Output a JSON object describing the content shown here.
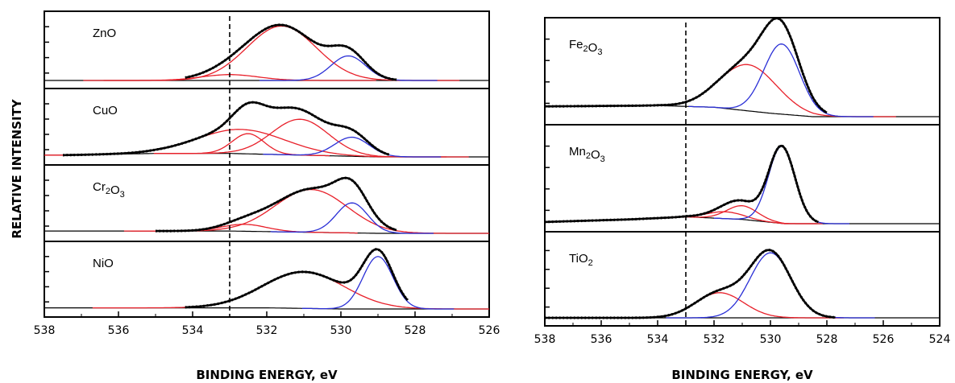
{
  "colors": {
    "data": "#000000",
    "red_component": "#e8202a",
    "blue_component": "#2a2fd6",
    "baseline": "#000000"
  },
  "chart_data": [
    {
      "type": "line",
      "subtype": "stacked_xps_spectra",
      "xlabel": "BINDING ENERGY, eV",
      "ylabel": "RELATIVE INTENSITY",
      "xlim": [
        538,
        526
      ],
      "x_reversed": true,
      "x_ticks": [
        "538",
        "536",
        "534",
        "532",
        "530",
        "528",
        "526"
      ],
      "reference_line": 533,
      "panels": [
        {
          "label": {
            "main": "ZnO",
            "parts": [
              {
                "t": "ZnO",
                "sub": ""
              }
            ]
          },
          "ylim": [
            0,
            1.1
          ],
          "background": [
            [
              534.2,
              0.0
            ],
            [
              526,
              0.0
            ]
          ],
          "envelope": {
            "start": 534.2,
            "end": 528.5,
            "level": 0.0
          },
          "peaks": [
            {
              "color": "red",
              "center": 531.6,
              "height": 0.93,
              "fwhm": 2.2
            },
            {
              "color": "red",
              "center": 533.0,
              "height": 0.1,
              "fwhm": 1.8
            },
            {
              "color": "blue",
              "center": 529.8,
              "height": 0.42,
              "fwhm": 1.1
            }
          ]
        },
        {
          "label": {
            "main": "CuO",
            "parts": [
              {
                "t": "CuO",
                "sub": ""
              }
            ]
          },
          "ylim": [
            0,
            1.1
          ],
          "background": [
            [
              537.5,
              0.03
            ],
            [
              535,
              0.06
            ],
            [
              533,
              0.06
            ],
            [
              531,
              0.03
            ],
            [
              529,
              0.0
            ],
            [
              526,
              0.0
            ]
          ],
          "envelope": {
            "start": 537.5,
            "end": 528.7,
            "level": 0.0
          },
          "peaks": [
            {
              "color": "red",
              "center": 532.7,
              "height": 0.42,
              "fwhm": 2.8
            },
            {
              "color": "red",
              "center": 532.5,
              "height": 0.35,
              "fwhm": 1.0
            },
            {
              "color": "red",
              "center": 531.1,
              "height": 0.62,
              "fwhm": 1.8
            },
            {
              "color": "blue",
              "center": 529.7,
              "height": 0.33,
              "fwhm": 1.1
            }
          ]
        },
        {
          "label": {
            "main": "Cr2O3",
            "parts": [
              {
                "t": "Cr",
                "sub": "2"
              },
              {
                "t": "O",
                "sub": "3"
              }
            ]
          },
          "ylim": [
            0,
            1.1
          ],
          "background": [
            [
              535.0,
              0.04
            ],
            [
              533,
              0.04
            ],
            [
              531,
              0.02
            ],
            [
              529,
              0.0
            ],
            [
              526,
              0.0
            ]
          ],
          "envelope": {
            "start": 535.0,
            "end": 528.5,
            "level": 0.0
          },
          "peaks": [
            {
              "color": "red",
              "center": 530.8,
              "height": 0.74,
              "fwhm": 2.3
            },
            {
              "color": "red",
              "center": 532.6,
              "height": 0.12,
              "fwhm": 1.4
            },
            {
              "color": "blue",
              "center": 529.7,
              "height": 0.52,
              "fwhm": 1.0
            }
          ]
        },
        {
          "label": {
            "main": "NiO",
            "parts": [
              {
                "t": "NiO",
                "sub": ""
              }
            ]
          },
          "ylim": [
            0,
            1.1
          ],
          "background": [
            [
              534.2,
              0.02
            ],
            [
              532,
              0.02
            ],
            [
              530,
              0.0
            ],
            [
              526,
              0.0
            ]
          ],
          "envelope": {
            "start": 534.2,
            "end": 528.2,
            "level": 0.0
          },
          "peaks": [
            {
              "color": "red",
              "center": 531.0,
              "height": 0.64,
              "fwhm": 2.6
            },
            {
              "color": "blue",
              "center": 529.0,
              "height": 0.92,
              "fwhm": 0.95
            }
          ]
        }
      ]
    },
    {
      "type": "line",
      "subtype": "stacked_xps_spectra",
      "xlabel": "BINDING ENERGY, eV",
      "ylabel": "",
      "xlim": [
        538,
        524
      ],
      "x_reversed": true,
      "x_ticks": [
        "538",
        "536",
        "534",
        "532",
        "530",
        "528",
        "526",
        "524"
      ],
      "reference_line": 533,
      "panels": [
        {
          "label": {
            "main": "Fe2O3",
            "parts": [
              {
                "t": "Fe",
                "sub": "2"
              },
              {
                "t": "O",
                "sub": "3"
              }
            ]
          },
          "ylim": [
            0,
            1.1
          ],
          "background": [
            [
              538,
              0.12
            ],
            [
              534,
              0.13
            ],
            [
              532,
              0.11
            ],
            [
              530,
              0.04
            ],
            [
              528.5,
              0.0
            ],
            [
              524,
              0.0
            ]
          ],
          "envelope": {
            "start": 538,
            "end": 528.0,
            "level": 0.0
          },
          "peaks": [
            {
              "color": "red",
              "center": 530.8,
              "height": 0.54,
              "fwhm": 2.4
            },
            {
              "color": "blue",
              "center": 529.6,
              "height": 0.82,
              "fwhm": 1.5
            }
          ]
        },
        {
          "label": {
            "main": "Mn2O3",
            "parts": [
              {
                "t": "Mn",
                "sub": "2"
              },
              {
                "t": "O",
                "sub": "3"
              }
            ]
          },
          "ylim": [
            0,
            1.1
          ],
          "background": [
            [
              538,
              0.02
            ],
            [
              535,
              0.05
            ],
            [
              533,
              0.08
            ],
            [
              531,
              0.05
            ],
            [
              529.5,
              0.0
            ],
            [
              524,
              0.0
            ]
          ],
          "envelope": {
            "start": 538,
            "end": 528.3,
            "level": 0.0
          },
          "peaks": [
            {
              "color": "red",
              "center": 531.0,
              "height": 0.16,
              "fwhm": 1.3
            },
            {
              "color": "red",
              "center": 531.6,
              "height": 0.08,
              "fwhm": 1.5
            },
            {
              "color": "blue",
              "center": 529.6,
              "height": 0.9,
              "fwhm": 1.1
            }
          ]
        },
        {
          "label": {
            "main": "TiO2",
            "parts": [
              {
                "t": "Ti",
                "sub": ""
              },
              {
                "t": "O",
                "sub": "2"
              }
            ]
          },
          "ylim": [
            0,
            1.1
          ],
          "background": [
            [
              538,
              0.0
            ],
            [
              524,
              0.0
            ]
          ],
          "envelope": {
            "start": 538,
            "end": 527.7,
            "level": 0.0
          },
          "peaks": [
            {
              "color": "red",
              "center": 531.8,
              "height": 0.34,
              "fwhm": 2.0
            },
            {
              "color": "blue",
              "center": 530.0,
              "height": 0.88,
              "fwhm": 1.7
            }
          ]
        }
      ]
    }
  ]
}
